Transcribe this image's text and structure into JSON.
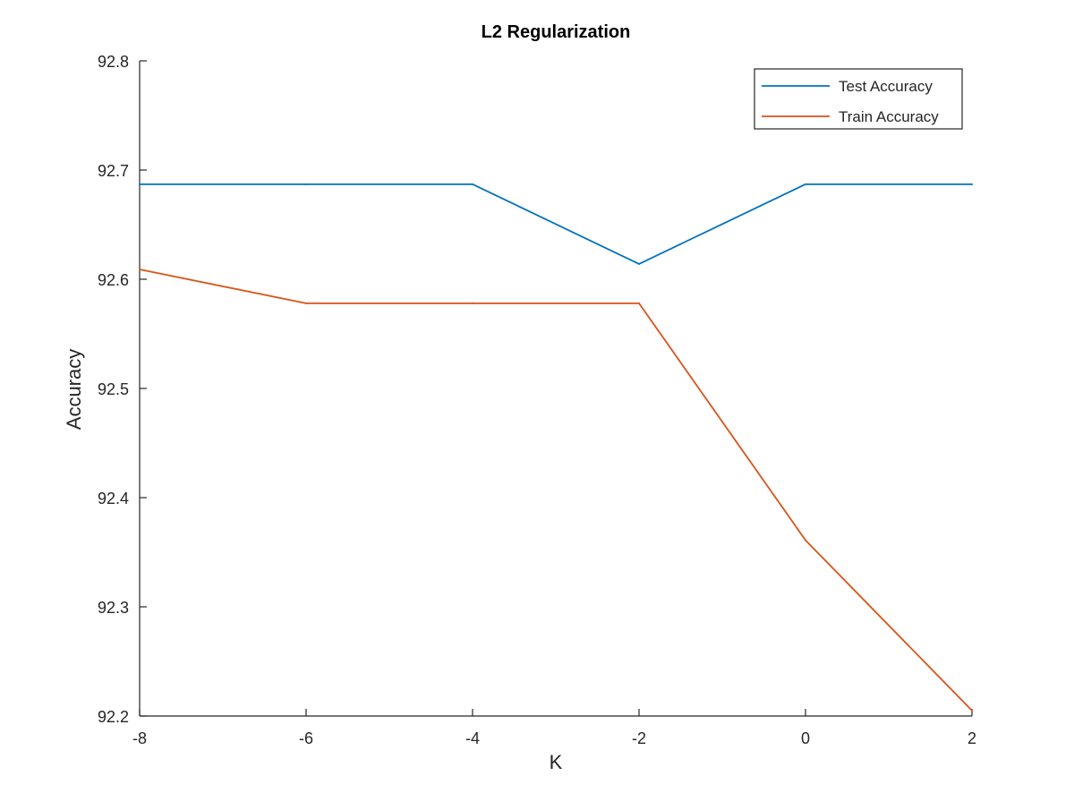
{
  "chart_data": {
    "type": "line",
    "title": "L2 Regularization",
    "xlabel": "K",
    "ylabel": "Accuracy",
    "xlim": [
      -8,
      2
    ],
    "ylim": [
      92.2,
      92.8
    ],
    "xticks": [
      -8,
      -6,
      -4,
      -2,
      0,
      2
    ],
    "yticks": [
      92.2,
      92.3,
      92.4,
      92.5,
      92.6,
      92.7,
      92.8
    ],
    "xtick_labels": [
      "-8",
      "-6",
      "-4",
      "-2",
      "0",
      "2"
    ],
    "ytick_labels": [
      "92.2",
      "92.3",
      "92.4",
      "92.5",
      "92.6",
      "92.7",
      "92.8"
    ],
    "x": [
      -8,
      -6,
      -4,
      -2,
      0,
      2
    ],
    "series": [
      {
        "name": "Test Accuracy",
        "color": "#0072BD",
        "values": [
          92.687,
          92.687,
          92.687,
          92.614,
          92.687,
          92.687
        ]
      },
      {
        "name": "Train Accuracy",
        "color": "#D95319",
        "values": [
          92.609,
          92.578,
          92.578,
          92.578,
          92.361,
          92.205
        ]
      }
    ],
    "grid": false,
    "legend_position": "top-right",
    "box": "left-bottom axes only"
  }
}
